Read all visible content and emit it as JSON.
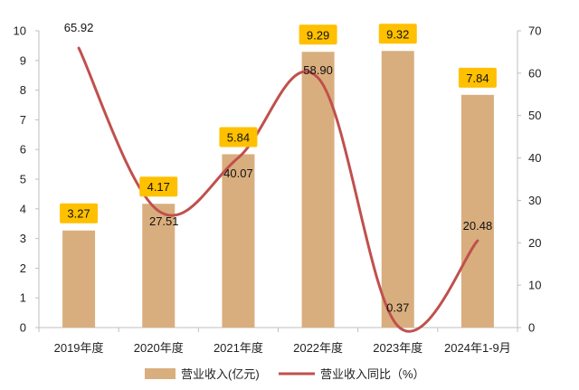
{
  "chart_data": {
    "type": "bar",
    "categories": [
      "2019年度",
      "2020年度",
      "2021年度",
      "2022年度",
      "2023年度",
      "2024年1-9月"
    ],
    "series": [
      {
        "name": "营业收入(亿元)",
        "type": "bar",
        "axis": "left",
        "values": [
          3.27,
          4.17,
          5.84,
          9.29,
          9.32,
          7.84
        ],
        "labels": [
          "3.27",
          "4.17",
          "5.84",
          "9.29",
          "9.32",
          "7.84"
        ]
      },
      {
        "name": "营业收入同比（%）",
        "type": "line",
        "axis": "right",
        "values": [
          65.92,
          27.51,
          40.07,
          58.9,
          0.37,
          20.48
        ],
        "labels": [
          "65.92",
          "27.51",
          "40.07",
          "58.90",
          "0.37",
          "20.48"
        ]
      }
    ],
    "ylim_left": [
      0,
      10
    ],
    "yticks_left": [
      "0",
      "1",
      "2",
      "3",
      "4",
      "5",
      "6",
      "7",
      "8",
      "9",
      "10"
    ],
    "ylim_right": [
      0,
      70
    ],
    "yticks_right": [
      "0",
      "10",
      "20",
      "30",
      "40",
      "50",
      "60",
      "70"
    ],
    "grid": false,
    "legend": "bottom",
    "colors": {
      "bar": "#D9AE7E",
      "line": "#C0504D",
      "label_box": "#FFC000"
    }
  }
}
